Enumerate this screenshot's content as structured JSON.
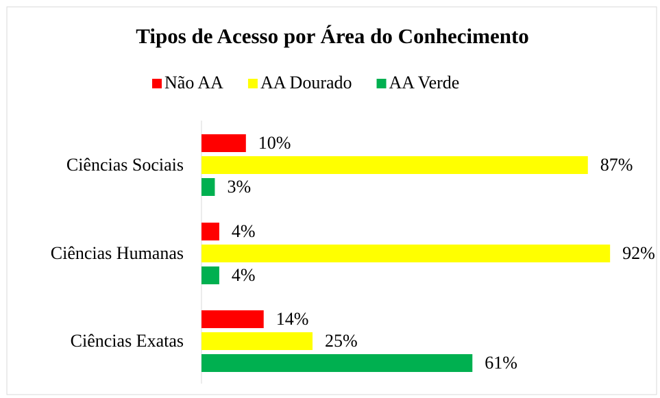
{
  "chart_data": {
    "type": "barh",
    "title": "Tipos de Acesso por Área do Conhecimento",
    "categories": [
      "Ciências Sociais",
      "Ciências Humanas",
      "Ciências Exatas"
    ],
    "series": [
      {
        "name": "Não AA",
        "color": "#ff0000",
        "values": [
          10,
          4,
          14
        ],
        "value_labels": [
          "10%",
          "4%",
          "14%"
        ]
      },
      {
        "name": "AA Dourado",
        "color": "#ffff00",
        "values": [
          87,
          92,
          25
        ],
        "value_labels": [
          "87%",
          "92%",
          "25%"
        ]
      },
      {
        "name": "AA Verde",
        "color": "#00b050",
        "values": [
          3,
          4,
          61
        ],
        "value_labels": [
          "3%",
          "4%",
          "61%"
        ]
      }
    ],
    "xlim": [
      0,
      100
    ],
    "legend": "top"
  }
}
